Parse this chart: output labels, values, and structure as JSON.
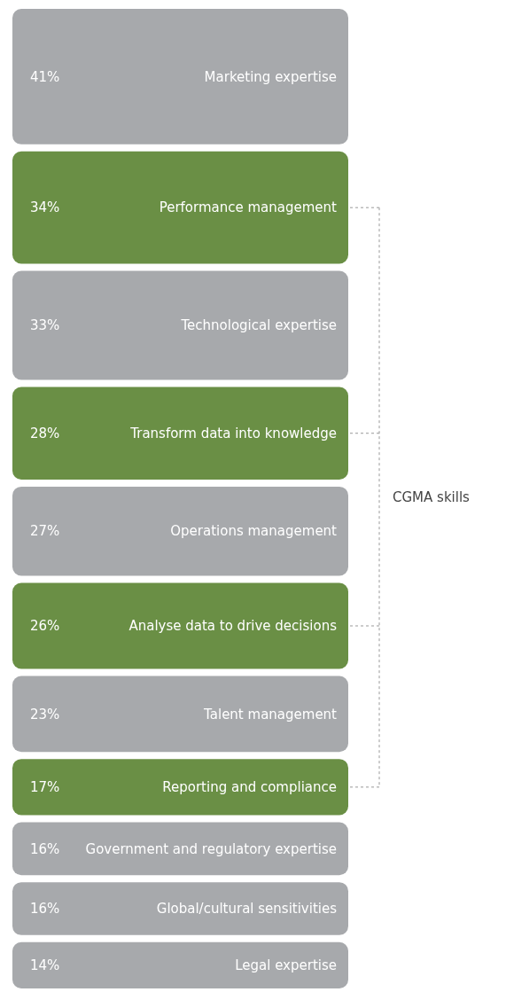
{
  "chart_data": {
    "type": "other",
    "categories": [
      "Marketing expertise",
      "Performance management",
      "Technological expertise",
      "Transform data into knowledge",
      "Operations management",
      "Analyse data to drive decisions",
      "Talent management",
      "Reporting and compliance",
      "Government and regulatory expertise",
      "Global/cultural sensitivities",
      "Legal expertise"
    ],
    "values": [
      41,
      34,
      33,
      28,
      27,
      26,
      23,
      17,
      16,
      16,
      14
    ],
    "colors": [
      "#a7a9ac",
      "#6a8f45",
      "#a7a9ac",
      "#6a8f45",
      "#a7a9ac",
      "#6a8f45",
      "#a7a9ac",
      "#6a8f45",
      "#a7a9ac",
      "#a7a9ac",
      "#a7a9ac"
    ],
    "value_labels": [
      "41%",
      "34%",
      "33%",
      "28%",
      "27%",
      "26%",
      "23%",
      "17%",
      "16%",
      "16%",
      "14%"
    ],
    "annotations": [
      "CGMA skills"
    ]
  }
}
